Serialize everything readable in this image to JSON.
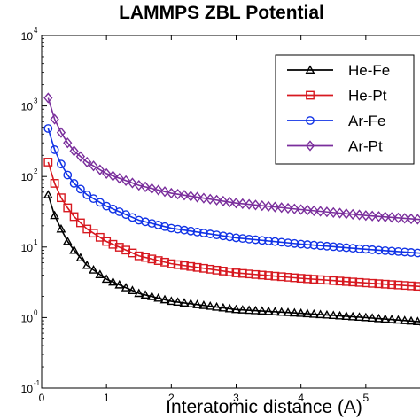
{
  "chart_data": {
    "type": "line",
    "title": "LAMMPS ZBL Potential",
    "xlabel": "Interatomic distance (A)",
    "ylabel": "",
    "scale_y": "log",
    "xlim": [
      0,
      6
    ],
    "ylim": [
      0.1,
      10000
    ],
    "x_ticks": [
      "0",
      "1",
      "2",
      "3",
      "4",
      "5"
    ],
    "y_ticks": [
      {
        "base": "10",
        "exp": "-1",
        "value": 0.1
      },
      {
        "base": "10",
        "exp": "0",
        "value": 1
      },
      {
        "base": "10",
        "exp": "1",
        "value": 10
      },
      {
        "base": "10",
        "exp": "2",
        "value": 100
      },
      {
        "base": "10",
        "exp": "3",
        "value": 1000
      },
      {
        "base": "10",
        "exp": "4",
        "value": 10000
      }
    ],
    "grid": false,
    "legend_position": "top-right",
    "series": [
      {
        "name": "He-Fe",
        "color": "#000000",
        "marker": "triangle",
        "x": [
          0.1,
          0.2,
          0.3,
          0.4,
          0.5,
          0.7,
          1.0,
          1.5,
          2.0,
          3.0,
          4.0,
          5.0,
          6.0
        ],
        "y": [
          55,
          28,
          18,
          12,
          9,
          5.5,
          3.5,
          2.2,
          1.7,
          1.3,
          1.15,
          1.0,
          0.85
        ]
      },
      {
        "name": "He-Pt",
        "color": "#d71920",
        "marker": "square",
        "x": [
          0.1,
          0.2,
          0.3,
          0.4,
          0.5,
          0.7,
          1.0,
          1.5,
          2.0,
          3.0,
          4.0,
          5.0,
          6.0
        ],
        "y": [
          160,
          80,
          50,
          36,
          27,
          18,
          12,
          7.5,
          5.8,
          4.3,
          3.6,
          3.1,
          2.7
        ]
      },
      {
        "name": "Ar-Fe",
        "color": "#1133e6",
        "marker": "circle",
        "x": [
          0.1,
          0.2,
          0.3,
          0.4,
          0.5,
          0.7,
          1.0,
          1.5,
          2.0,
          3.0,
          4.0,
          5.0,
          6.0
        ],
        "y": [
          480,
          240,
          150,
          105,
          80,
          55,
          38,
          24,
          18.5,
          13.5,
          11,
          9.3,
          8
        ]
      },
      {
        "name": "Ar-Pt",
        "color": "#7a2e9c",
        "marker": "diamond",
        "x": [
          0.1,
          0.2,
          0.3,
          0.4,
          0.5,
          0.7,
          1.0,
          1.5,
          2.0,
          3.0,
          4.0,
          5.0,
          6.0
        ],
        "y": [
          1300,
          650,
          420,
          300,
          230,
          160,
          110,
          75,
          58,
          42,
          34,
          28,
          24
        ]
      }
    ]
  }
}
